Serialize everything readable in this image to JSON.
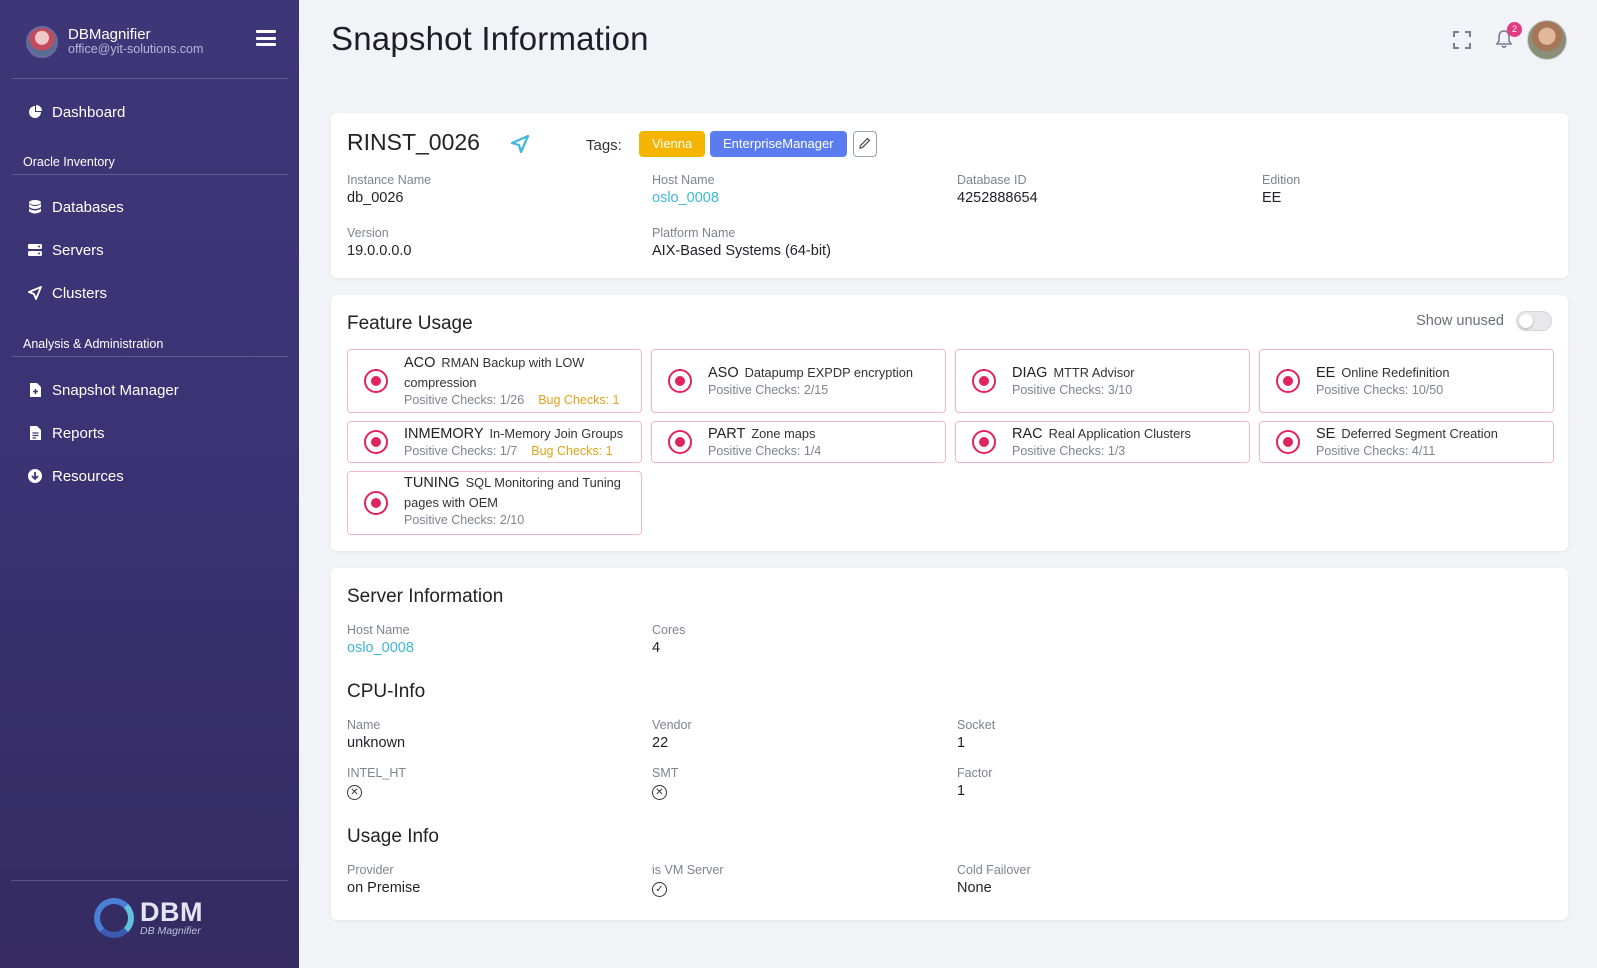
{
  "sidebar": {
    "user_name": "DBMagnifier",
    "user_email": "office@yit-solutions.com",
    "items": {
      "dashboard": "Dashboard",
      "databases": "Databases",
      "servers": "Servers",
      "clusters": "Clusters",
      "snapshot_manager": "Snapshot Manager",
      "reports": "Reports",
      "resources": "Resources"
    },
    "sections": {
      "oracle_inventory": "Oracle Inventory",
      "analysis": "Analysis & Administration"
    },
    "logo_big": "DBM",
    "logo_small": "DB Magnifier"
  },
  "header": {
    "title": "Snapshot Information",
    "notification_count": "2"
  },
  "instance": {
    "title": "RINST_0026",
    "tags_label": "Tags:",
    "tags": [
      {
        "label": "Vienna",
        "color": "#f5b400"
      },
      {
        "label": "EnterpriseManager",
        "color": "#5b7cf0"
      }
    ],
    "fields": {
      "instance_name_label": "Instance Name",
      "instance_name": "db_0026",
      "host_name_label": "Host Name",
      "host_name": "oslo_0008",
      "database_id_label": "Database ID",
      "database_id": "4252888654",
      "edition_label": "Edition",
      "edition": "EE",
      "version_label": "Version",
      "version": "19.0.0.0.0",
      "platform_label": "Platform Name",
      "platform": "AIX-Based Systems (64-bit)"
    }
  },
  "feature_usage": {
    "title": "Feature Usage",
    "show_unused_label": "Show unused",
    "show_unused": false,
    "features": [
      {
        "code": "ACO",
        "desc": "RMAN Backup with LOW compression",
        "checks": "Positive Checks: 1/26",
        "bug": "Bug Checks: 1"
      },
      {
        "code": "ASO",
        "desc": "Datapump EXPDP encryption",
        "checks": "Positive Checks: 2/15",
        "bug": ""
      },
      {
        "code": "DIAG",
        "desc": "MTTR Advisor",
        "checks": "Positive Checks: 3/10",
        "bug": ""
      },
      {
        "code": "EE",
        "desc": "Online Redefinition",
        "checks": "Positive Checks: 10/50",
        "bug": ""
      },
      {
        "code": "INMEMORY",
        "desc": "In-Memory Join Groups",
        "checks": "Positive Checks: 1/7",
        "bug": "Bug Checks: 1"
      },
      {
        "code": "PART",
        "desc": "Zone maps",
        "checks": "Positive Checks: 1/4",
        "bug": ""
      },
      {
        "code": "RAC",
        "desc": "Real Application Clusters",
        "checks": "Positive Checks: 1/3",
        "bug": ""
      },
      {
        "code": "SE",
        "desc": "Deferred Segment Creation",
        "checks": "Positive Checks: 4/11",
        "bug": ""
      },
      {
        "code": "TUNING",
        "desc": "SQL Monitoring and Tuning pages with OEM",
        "checks": "Positive Checks: 2/10",
        "bug": ""
      }
    ]
  },
  "server": {
    "title": "Server Information",
    "host_name_label": "Host Name",
    "host_name": "oslo_0008",
    "cores_label": "Cores",
    "cores": "4",
    "cpu_title": "CPU-Info",
    "name_label": "Name",
    "name": "unknown",
    "vendor_label": "Vendor",
    "vendor": "22",
    "socket_label": "Socket",
    "socket": "1",
    "intel_ht_label": "INTEL_HT",
    "intel_ht": false,
    "smt_label": "SMT",
    "smt": false,
    "factor_label": "Factor",
    "factor": "1",
    "usage_title": "Usage Info",
    "provider_label": "Provider",
    "provider": "on Premise",
    "is_vm_label": "is VM Server",
    "is_vm": true,
    "cold_failover_label": "Cold Failover",
    "cold_failover": "None"
  }
}
